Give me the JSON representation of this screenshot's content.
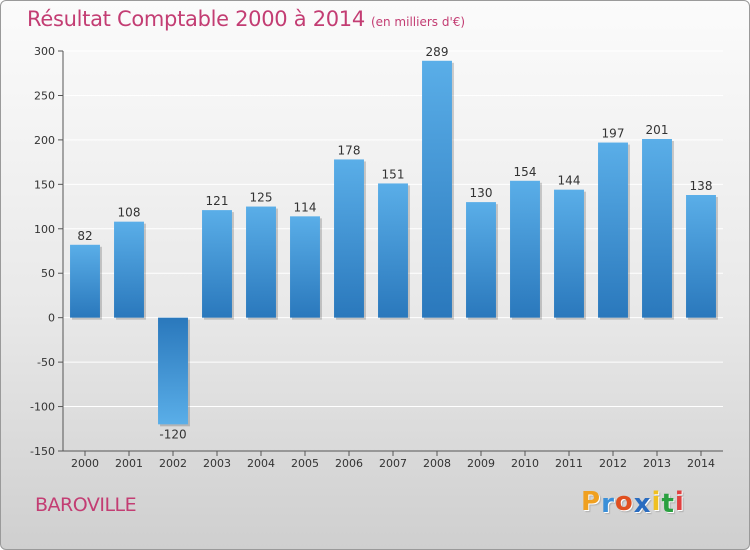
{
  "chart_data": {
    "type": "bar",
    "title": "Résultat Comptable 2000 à 2014",
    "subtitle": "(en milliers d'€)",
    "categories": [
      "2000",
      "2001",
      "2002",
      "2003",
      "2004",
      "2005",
      "2006",
      "2007",
      "2008",
      "2009",
      "2010",
      "2011",
      "2012",
      "2013",
      "2014"
    ],
    "values": [
      82,
      108,
      -120,
      121,
      125,
      114,
      178,
      151,
      289,
      130,
      154,
      144,
      197,
      201,
      138
    ],
    "ylim": [
      -150,
      300
    ],
    "yticks": [
      300,
      250,
      200,
      150,
      100,
      50,
      0,
      -50,
      -100,
      -150
    ],
    "ytick_labels": [
      "300",
      "250",
      "200",
      "150",
      "100",
      "50",
      "0",
      "-50",
      "-100",
      "-150"
    ],
    "xlabel": "",
    "ylabel": "",
    "grid": "horizontal",
    "legend": "none"
  },
  "location": "BAROVILLE",
  "logo": {
    "letters": [
      "P",
      "r",
      "o",
      "x",
      "i",
      "t",
      "i"
    ],
    "colors": [
      "#f0a020",
      "#3a8fd8",
      "#e05020",
      "#2a6cc0",
      "#f0c020",
      "#2aa040",
      "#e04040"
    ]
  },
  "colors": {
    "bar_top": "#5aaee8",
    "bar_bottom": "#2a78bc",
    "accent": "#c33d73",
    "grid": "#ffffff"
  }
}
